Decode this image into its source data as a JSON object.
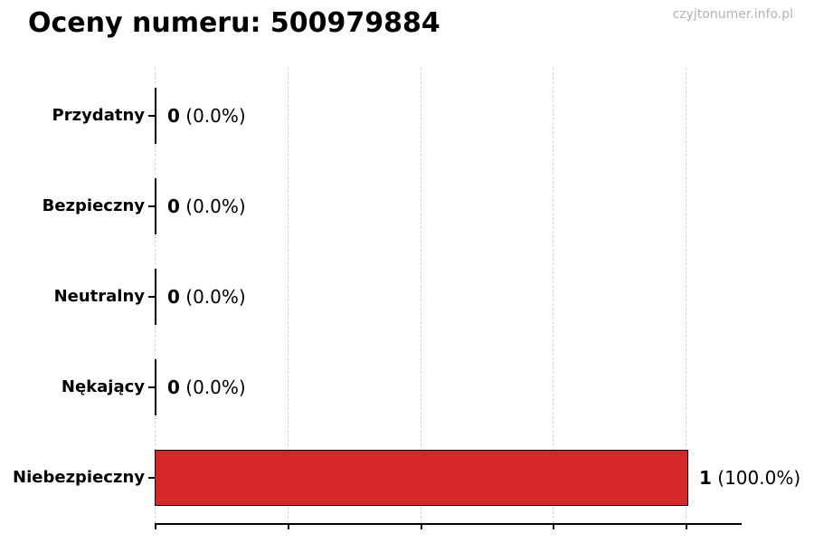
{
  "header": {
    "title": "Oceny numeru: 500979884",
    "watermark": "czyjtonumer.info.pl"
  },
  "chart_data": {
    "type": "bar",
    "orientation": "horizontal",
    "title": "Oceny numeru: 500979884",
    "categories": [
      "Przydatny",
      "Bezpieczny",
      "Neutralny",
      "Nękający",
      "Niebezpieczny"
    ],
    "values": [
      0,
      0,
      0,
      0,
      1
    ],
    "counts": [
      "0",
      "0",
      "0",
      "0",
      "1"
    ],
    "percents": [
      " (0.0%)",
      " (0.0%)",
      " (0.0%)",
      " (0.0%)",
      " (100.0%)"
    ],
    "total": 1,
    "xlim": [
      0,
      1.1
    ],
    "xticks": [
      0,
      0.25,
      0.5,
      0.75,
      1
    ],
    "grid": true,
    "legend": false,
    "colors": {
      "bar_fill": "#d62728",
      "bar_edge": "#000000",
      "gridline": "#d2d2d2",
      "axis": "#000000",
      "text": "#000000",
      "watermark": "#b3b3b3"
    }
  }
}
